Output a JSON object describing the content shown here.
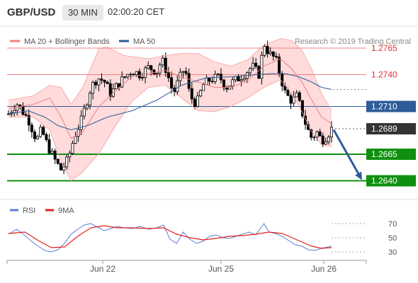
{
  "header": {
    "symbol": "GBP/USD",
    "interval": "30 MIN",
    "time": "02:00:20 CET"
  },
  "legend": [
    {
      "name": "MA 20 + Bollinger Bands",
      "color": "#f08080"
    },
    {
      "name": "MA 50",
      "color": "#2e5c9a"
    }
  ],
  "copyright": "Research © 2019 Trading Central",
  "rsi_legend": [
    {
      "name": "RSI",
      "color": "#5b7fd6"
    },
    {
      "name": "9MA",
      "color": "#e02020"
    }
  ],
  "colors": {
    "up": "#ffffff",
    "down": "#000000",
    "band": "#ffcfcf",
    "ma20": "#f08080",
    "ma50": "#2e5c9a",
    "resistance": "#f08080",
    "pivot": "#2e5c9a",
    "support": "#109010",
    "arrow": "#2e5c9a"
  },
  "chart_data": {
    "type": "candlestick",
    "yrange": [
      1.2625,
      1.2785
    ],
    "price_axis": {
      "ticks": [
        "1.2765",
        "1.2740"
      ]
    },
    "levels": [
      {
        "value": 1.2765,
        "label": "1.2765",
        "kind": "resistance"
      },
      {
        "value": 1.274,
        "label": "1.2740",
        "kind": "resistance"
      },
      {
        "value": 1.271,
        "label": "1.2710",
        "kind": "pivot"
      },
      {
        "value": 1.2689,
        "label": "1.2689",
        "kind": "current"
      },
      {
        "value": 1.2665,
        "label": "1.2665",
        "kind": "support"
      },
      {
        "value": 1.264,
        "label": "1.2640",
        "kind": "support"
      }
    ],
    "x_labels": [
      "Jun 22",
      "Jun 25",
      "Jun 26"
    ],
    "close_path": [
      [
        0,
        1.2703
      ],
      [
        5,
        1.2713
      ],
      [
        12,
        1.2698
      ],
      [
        17,
        1.2678
      ],
      [
        20,
        1.2688
      ],
      [
        24,
        1.2672
      ],
      [
        28,
        1.266
      ],
      [
        32,
        1.265
      ],
      [
        36,
        1.266
      ],
      [
        40,
        1.2682
      ],
      [
        44,
        1.2696
      ],
      [
        47,
        1.2712
      ],
      [
        50,
        1.2728
      ],
      [
        54,
        1.2737
      ],
      [
        58,
        1.2734
      ],
      [
        62,
        1.2722
      ],
      [
        66,
        1.273
      ],
      [
        70,
        1.2737
      ],
      [
        75,
        1.2744
      ],
      [
        80,
        1.274
      ],
      [
        85,
        1.2747
      ],
      [
        90,
        1.2743
      ],
      [
        93,
        1.2754
      ],
      [
        96,
        1.2743
      ],
      [
        100,
        1.2722
      ],
      [
        103,
        1.2734
      ],
      [
        107,
        1.2747
      ],
      [
        110,
        1.272
      ],
      [
        114,
        1.2712
      ],
      [
        118,
        1.273
      ],
      [
        122,
        1.2735
      ],
      [
        128,
        1.2738
      ],
      [
        132,
        1.2728
      ],
      [
        136,
        1.2733
      ],
      [
        140,
        1.2737
      ],
      [
        144,
        1.2742
      ],
      [
        148,
        1.2748
      ],
      [
        152,
        1.274
      ],
      [
        155,
        1.277
      ],
      [
        158,
        1.276
      ],
      [
        162,
        1.2755
      ],
      [
        165,
        1.2738
      ],
      [
        168,
        1.2722
      ],
      [
        172,
        1.2715
      ],
      [
        175,
        1.272
      ],
      [
        178,
        1.2705
      ],
      [
        181,
        1.269
      ],
      [
        184,
        1.268
      ],
      [
        187,
        1.2686
      ],
      [
        190,
        1.2678
      ],
      [
        193,
        1.2682
      ],
      [
        196,
        1.2689
      ]
    ],
    "ma20": [
      [
        0,
        1.2708
      ],
      [
        15,
        1.2712
      ],
      [
        25,
        1.2718
      ],
      [
        32,
        1.27
      ],
      [
        38,
        1.268
      ],
      [
        45,
        1.2686
      ],
      [
        55,
        1.271
      ],
      [
        65,
        1.2725
      ],
      [
        75,
        1.2738
      ],
      [
        85,
        1.2741
      ],
      [
        95,
        1.2744
      ],
      [
        105,
        1.2738
      ],
      [
        115,
        1.2733
      ],
      [
        125,
        1.2728
      ],
      [
        135,
        1.2728
      ],
      [
        145,
        1.2734
      ],
      [
        155,
        1.2748
      ],
      [
        165,
        1.2755
      ],
      [
        172,
        1.2745
      ],
      [
        178,
        1.2733
      ],
      [
        184,
        1.2716
      ],
      [
        190,
        1.27
      ],
      [
        196,
        1.2694
      ]
    ],
    "bb_upper": [
      [
        0,
        1.2716
      ],
      [
        15,
        1.272
      ],
      [
        25,
        1.273
      ],
      [
        32,
        1.2728
      ],
      [
        38,
        1.2712
      ],
      [
        45,
        1.2728
      ],
      [
        55,
        1.2765
      ],
      [
        60,
        1.2766
      ],
      [
        70,
        1.2758
      ],
      [
        85,
        1.2755
      ],
      [
        95,
        1.2758
      ],
      [
        105,
        1.276
      ],
      [
        115,
        1.276
      ],
      [
        125,
        1.2752
      ],
      [
        135,
        1.2748
      ],
      [
        145,
        1.2754
      ],
      [
        155,
        1.2768
      ],
      [
        165,
        1.2774
      ],
      [
        172,
        1.2772
      ],
      [
        178,
        1.2763
      ],
      [
        184,
        1.2745
      ],
      [
        190,
        1.2722
      ],
      [
        196,
        1.2706
      ]
    ],
    "bb_lower": [
      [
        0,
        1.27
      ],
      [
        15,
        1.27
      ],
      [
        25,
        1.2688
      ],
      [
        32,
        1.2658
      ],
      [
        38,
        1.264
      ],
      [
        45,
        1.2648
      ],
      [
        55,
        1.2666
      ],
      [
        65,
        1.2692
      ],
      [
        75,
        1.2715
      ],
      [
        85,
        1.2728
      ],
      [
        95,
        1.273
      ],
      [
        105,
        1.2718
      ],
      [
        115,
        1.2706
      ],
      [
        125,
        1.2705
      ],
      [
        135,
        1.271
      ],
      [
        145,
        1.2718
      ],
      [
        155,
        1.2728
      ],
      [
        165,
        1.2735
      ],
      [
        172,
        1.2722
      ],
      [
        178,
        1.2705
      ],
      [
        184,
        1.2686
      ],
      [
        190,
        1.2674
      ],
      [
        196,
        1.2672
      ]
    ],
    "ma50": [
      [
        0,
        1.2703
      ],
      [
        12,
        1.2706
      ],
      [
        22,
        1.27
      ],
      [
        30,
        1.2692
      ],
      [
        38,
        1.2688
      ],
      [
        48,
        1.2692
      ],
      [
        60,
        1.27
      ],
      [
        75,
        1.2706
      ],
      [
        90,
        1.2716
      ],
      [
        105,
        1.273
      ],
      [
        120,
        1.2737
      ],
      [
        135,
        1.2738
      ],
      [
        150,
        1.274
      ],
      [
        160,
        1.2741
      ],
      [
        168,
        1.2741
      ],
      [
        176,
        1.2738
      ],
      [
        184,
        1.2733
      ],
      [
        190,
        1.2728
      ],
      [
        196,
        1.2726
      ]
    ],
    "rsi": {
      "ticks": [
        70,
        50,
        30
      ],
      "yrange": [
        20,
        80
      ],
      "rsi": [
        [
          0,
          55
        ],
        [
          5,
          62
        ],
        [
          10,
          53
        ],
        [
          14,
          45
        ],
        [
          18,
          38
        ],
        [
          22,
          32
        ],
        [
          26,
          30
        ],
        [
          30,
          33
        ],
        [
          34,
          42
        ],
        [
          38,
          55
        ],
        [
          42,
          62
        ],
        [
          46,
          68
        ],
        [
          50,
          70
        ],
        [
          54,
          65
        ],
        [
          58,
          60
        ],
        [
          62,
          63
        ],
        [
          66,
          66
        ],
        [
          70,
          64
        ],
        [
          75,
          63
        ],
        [
          80,
          66
        ],
        [
          85,
          62
        ],
        [
          90,
          64
        ],
        [
          94,
          68
        ],
        [
          98,
          48
        ],
        [
          102,
          42
        ],
        [
          106,
          58
        ],
        [
          110,
          48
        ],
        [
          114,
          42
        ],
        [
          118,
          45
        ],
        [
          122,
          52
        ],
        [
          126,
          54
        ],
        [
          130,
          50
        ],
        [
          134,
          49
        ],
        [
          138,
          52
        ],
        [
          142,
          55
        ],
        [
          146,
          58
        ],
        [
          150,
          54
        ],
        [
          155,
          70
        ],
        [
          158,
          58
        ],
        [
          162,
          56
        ],
        [
          166,
          52
        ],
        [
          170,
          46
        ],
        [
          174,
          40
        ],
        [
          178,
          38
        ],
        [
          182,
          33
        ],
        [
          186,
          32
        ],
        [
          190,
          35
        ],
        [
          194,
          37
        ],
        [
          196,
          38
        ]
      ],
      "ma9": [
        [
          0,
          56
        ],
        [
          10,
          58
        ],
        [
          18,
          46
        ],
        [
          26,
          36
        ],
        [
          34,
          37
        ],
        [
          42,
          52
        ],
        [
          50,
          64
        ],
        [
          58,
          67
        ],
        [
          66,
          64
        ],
        [
          75,
          64
        ],
        [
          85,
          63
        ],
        [
          94,
          64
        ],
        [
          102,
          55
        ],
        [
          110,
          50
        ],
        [
          118,
          47
        ],
        [
          126,
          49
        ],
        [
          134,
          52
        ],
        [
          142,
          53
        ],
        [
          150,
          55
        ],
        [
          158,
          58
        ],
        [
          166,
          56
        ],
        [
          172,
          50
        ],
        [
          178,
          44
        ],
        [
          184,
          38
        ],
        [
          190,
          35
        ],
        [
          196,
          36
        ]
      ]
    }
  }
}
